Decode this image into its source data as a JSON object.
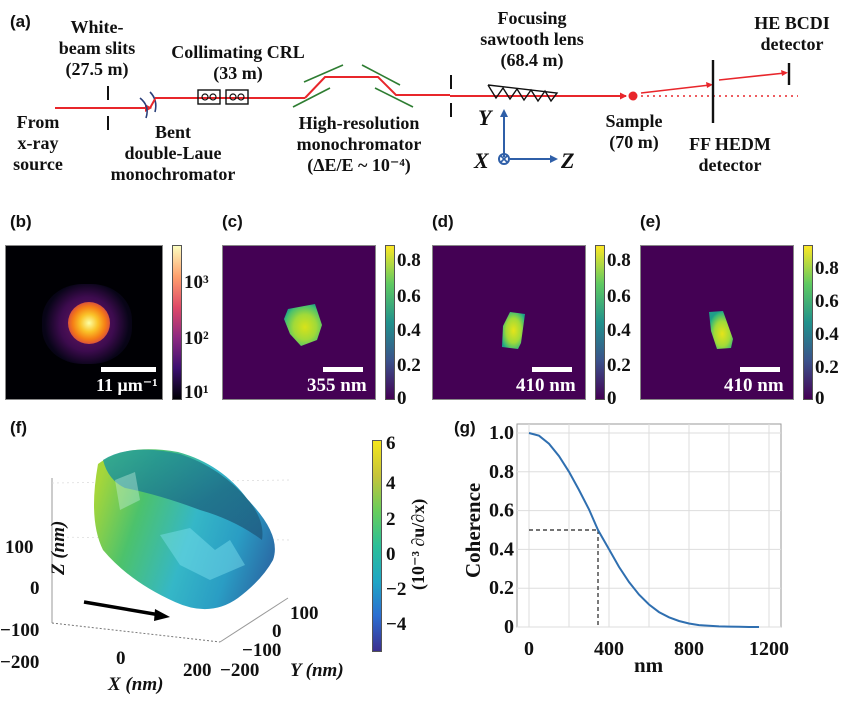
{
  "panels": {
    "a": {
      "label": "(a)",
      "from_source": [
        "From",
        "x-ray",
        "source"
      ],
      "white_beam_slits": [
        "White-",
        "beam slits",
        "(27.5 m)"
      ],
      "collimating_crl": [
        "Collimating CRL",
        "(33 m)"
      ],
      "bent_laue": [
        "Bent",
        "double-Laue",
        "monochromator"
      ],
      "hr_mono": [
        "High-resolution",
        "monochromator",
        "(ΔE/E ~ 10⁻⁴)"
      ],
      "sawtooth": [
        "Focusing",
        "sawtooth lens",
        "(68.4 m)"
      ],
      "sample": [
        "Sample",
        "(70 m)"
      ],
      "ff_hedm": [
        "FF HEDM",
        "detector"
      ],
      "he_bcdi": [
        "HE BCDI",
        "detector"
      ],
      "axes": {
        "y": "Y",
        "x": "X",
        "z": "Z"
      },
      "colors": {
        "beam": "#e8262b",
        "crystal": "#2e7d32",
        "axes": "#2f5fa8",
        "laue": "#2a3f7a"
      }
    },
    "b": {
      "label": "(b)",
      "scalebar": "11 μm⁻¹",
      "colorbar_ticks": [
        "10³",
        "10²",
        "10¹"
      ],
      "colormap": "inferno"
    },
    "c": {
      "label": "(c)",
      "scalebar": "355 nm",
      "colorbar_ticks": [
        "0.8",
        "0.6",
        "0.4",
        "0.2",
        "0"
      ],
      "colormap": "viridis"
    },
    "d": {
      "label": "(d)",
      "scalebar": "410 nm",
      "colorbar_ticks": [
        "0.8",
        "0.6",
        "0.4",
        "0.2",
        "0"
      ],
      "colormap": "viridis"
    },
    "e": {
      "label": "(e)",
      "scalebar": "410 nm",
      "colorbar_ticks": [
        "0.8",
        "0.6",
        "0.4",
        "0.2",
        "0"
      ],
      "colormap": "viridis"
    },
    "f": {
      "label": "(f)",
      "z_axis_label": "Z (nm)",
      "z_ticks": [
        "100",
        "0",
        "−100",
        "−200"
      ],
      "x_axis_label": "X (nm)",
      "x_ticks": [
        "0",
        "200"
      ],
      "y_axis_label": "Y (nm)",
      "y_ticks": [
        "100",
        "0",
        "−100",
        "−200"
      ],
      "colorbar_label": "(10⁻³ ∂u/∂x)",
      "colorbar_ticks": [
        "6",
        "4",
        "2",
        "0",
        "−2",
        "−4"
      ],
      "colormap": "viridis"
    }
  },
  "chart_data": {
    "type": "line",
    "panel_label": "(g)",
    "title": "",
    "xlabel": "nm",
    "ylabel": "Coherence",
    "xlim": [
      0,
      1200
    ],
    "ylim": [
      0,
      1.0
    ],
    "x_ticks": [
      0,
      400,
      800,
      1200
    ],
    "y_ticks": [
      0,
      0.2,
      0.4,
      0.6,
      0.8,
      1.0
    ],
    "y_tick_labels": [
      "0",
      "0.2",
      "0.4",
      "0.6",
      "0.8",
      "1.0"
    ],
    "x_tick_labels": [
      "0",
      "400",
      "800",
      "1200"
    ],
    "grid": true,
    "series": [
      {
        "name": "Coherence",
        "color": "#2f6fb0",
        "x": [
          0,
          50,
          100,
          150,
          200,
          250,
          300,
          345,
          400,
          450,
          500,
          550,
          600,
          650,
          700,
          750,
          800,
          850,
          900,
          950,
          1000,
          1050,
          1100,
          1150
        ],
        "y": [
          1.0,
          0.986,
          0.945,
          0.881,
          0.8,
          0.706,
          0.606,
          0.5,
          0.401,
          0.31,
          0.232,
          0.167,
          0.116,
          0.077,
          0.05,
          0.031,
          0.018,
          0.01,
          0.006,
          0.003,
          0.002,
          0.001,
          0.0,
          0.0
        ]
      }
    ],
    "annotations": [
      {
        "type": "dashed-guide",
        "x": 345,
        "y": 0.5
      }
    ]
  }
}
